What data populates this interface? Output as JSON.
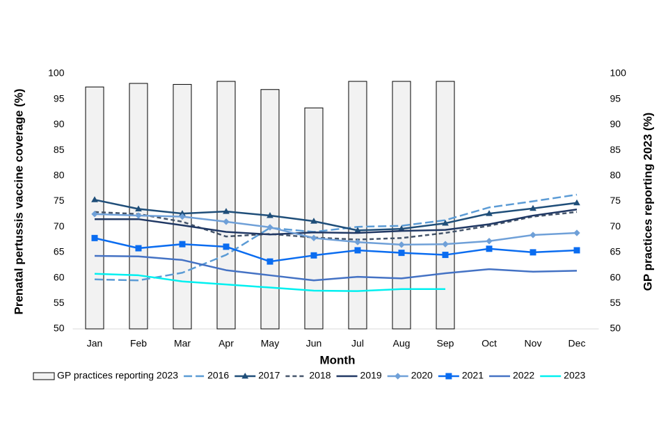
{
  "chart_data": {
    "type": "combo",
    "xlabel": "Month",
    "ylabel": "Prenatal pertussis vaccine coverage (%)",
    "y2label": "GP practices reporting 2023 (%)",
    "categories": [
      "Jan",
      "Feb",
      "Mar",
      "Apr",
      "May",
      "Jun",
      "Jul",
      "Aug",
      "Sep",
      "Oct",
      "Nov",
      "Dec"
    ],
    "ylim": [
      50,
      100
    ],
    "yticks": [
      50,
      55,
      60,
      65,
      70,
      75,
      80,
      85,
      90,
      95,
      100
    ],
    "y2lim": [
      50,
      100
    ],
    "y2ticks": [
      50,
      55,
      60,
      65,
      70,
      75,
      80,
      85,
      90,
      95,
      100
    ],
    "legend": "bottom",
    "series": [
      {
        "name": "GP practices reporting 2023",
        "type": "bar",
        "axis": "y2",
        "color": "#f2f2f2",
        "values": [
          97.4,
          98.1,
          97.9,
          98.5,
          96.9,
          93.3,
          98.5,
          98.5,
          98.5,
          null,
          null,
          null
        ]
      },
      {
        "name": "2016",
        "type": "line",
        "color": "#5b9bd5",
        "dash": "long",
        "marker": null,
        "values": [
          59.7,
          59.5,
          61,
          64.5,
          69.8,
          69,
          70,
          70.2,
          71.3,
          73.8,
          75,
          76.3
        ]
      },
      {
        "name": "2017",
        "type": "line",
        "color": "#1f4e79",
        "dash": null,
        "marker": "triangle",
        "values": [
          75.3,
          73.5,
          72.6,
          73,
          72.2,
          71.1,
          69.3,
          69.6,
          70.7,
          72.6,
          73.6,
          74.7
        ]
      },
      {
        "name": "2018",
        "type": "line",
        "color": "#44546a",
        "dash": "short",
        "marker": null,
        "values": [
          72.9,
          72.5,
          71,
          68.1,
          68.6,
          67.9,
          67.5,
          67.8,
          68.8,
          70.2,
          72,
          72.9
        ]
      },
      {
        "name": "2019",
        "type": "line",
        "color": "#203864",
        "dash": null,
        "marker": null,
        "values": [
          71.5,
          71.5,
          70.3,
          69,
          68.5,
          68.9,
          68.8,
          69.2,
          69.4,
          70.5,
          72.2,
          73.4
        ]
      },
      {
        "name": "2020",
        "type": "line",
        "color": "#6fa0d8",
        "dash": null,
        "marker": "diamond",
        "values": [
          72.5,
          72.2,
          72,
          71,
          69.9,
          67.8,
          67,
          66.5,
          66.6,
          67.2,
          68.4,
          68.8
        ]
      },
      {
        "name": "2021",
        "type": "line",
        "color": "#0a6cf0",
        "dash": null,
        "marker": "square",
        "values": [
          67.8,
          65.8,
          66.6,
          66.1,
          63.2,
          64.4,
          65.4,
          64.9,
          64.5,
          65.7,
          65,
          65.4
        ]
      },
      {
        "name": "2022",
        "type": "line",
        "color": "#4472c4",
        "dash": null,
        "marker": null,
        "values": [
          64.3,
          64.2,
          63.5,
          61.5,
          60.5,
          59.5,
          60.2,
          59.9,
          60.9,
          61.7,
          61.2,
          61.4
        ]
      },
      {
        "name": "2023",
        "type": "line",
        "color": "#00f0f0",
        "dash": null,
        "marker": null,
        "values": [
          60.8,
          60.5,
          59.3,
          58.7,
          58.1,
          57.5,
          57.4,
          57.8,
          57.8,
          null,
          null,
          null
        ]
      }
    ]
  }
}
